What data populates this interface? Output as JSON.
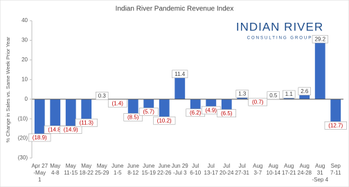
{
  "logo": {
    "name": "INDIAN RIVER",
    "tagline": "CONSULTING GROUP"
  },
  "chart_data": {
    "type": "bar",
    "title": "Indian River Pandemic Revenue Index",
    "y_label": "% Change in Sales vs. Same Week Prior Year",
    "categories": [
      "Apr 27\n-May\n1",
      "May\n4-8",
      "May\n11-15",
      "May\n18-22",
      "May\n25-29",
      "June\n1-5",
      "June\n8-12",
      "June\n15-19",
      "June\n22-26",
      "Jun 29\n-Jul 3",
      "Jul\n6-10",
      "Jul\n13-17",
      "Jul\n20-24",
      "Jul\n27-31",
      "Aug\n3-7",
      "Aug\n10-14",
      "Aug\n17-21",
      "Aug\n24-28",
      "Aug\n31\n-Sep 4",
      "Sep\n7-11"
    ],
    "values": [
      -18.9,
      -14.8,
      -14.9,
      -11.3,
      0.3,
      -1.4,
      -8.5,
      -5.7,
      -10.2,
      11.4,
      -6.2,
      -4.9,
      -6.5,
      1.3,
      -0.7,
      0.5,
      1.1,
      2.6,
      29.2,
      -12.7
    ],
    "value_labels": [
      "(18.9)",
      "(14.8)",
      "(14.9)",
      "(11.3)",
      "0.3",
      "(1.4)",
      "(8.5)",
      "(5.7)",
      "(10.2)",
      "11.4",
      "(6.2)",
      "(4.9)",
      "(6.5)",
      "1.3",
      "(0.7)",
      "0.5",
      "1.1",
      "2.6",
      "29.2",
      "(12.7)"
    ],
    "color": "#3a6cc4",
    "negative_label_color": "#c00000",
    "ylim": [
      -30,
      40
    ],
    "yticks": [
      {
        "value": -30,
        "label": "(30)"
      },
      {
        "value": -20,
        "label": "(20)"
      },
      {
        "value": -10,
        "label": "(10)"
      },
      0,
      10,
      20,
      30,
      40
    ]
  }
}
